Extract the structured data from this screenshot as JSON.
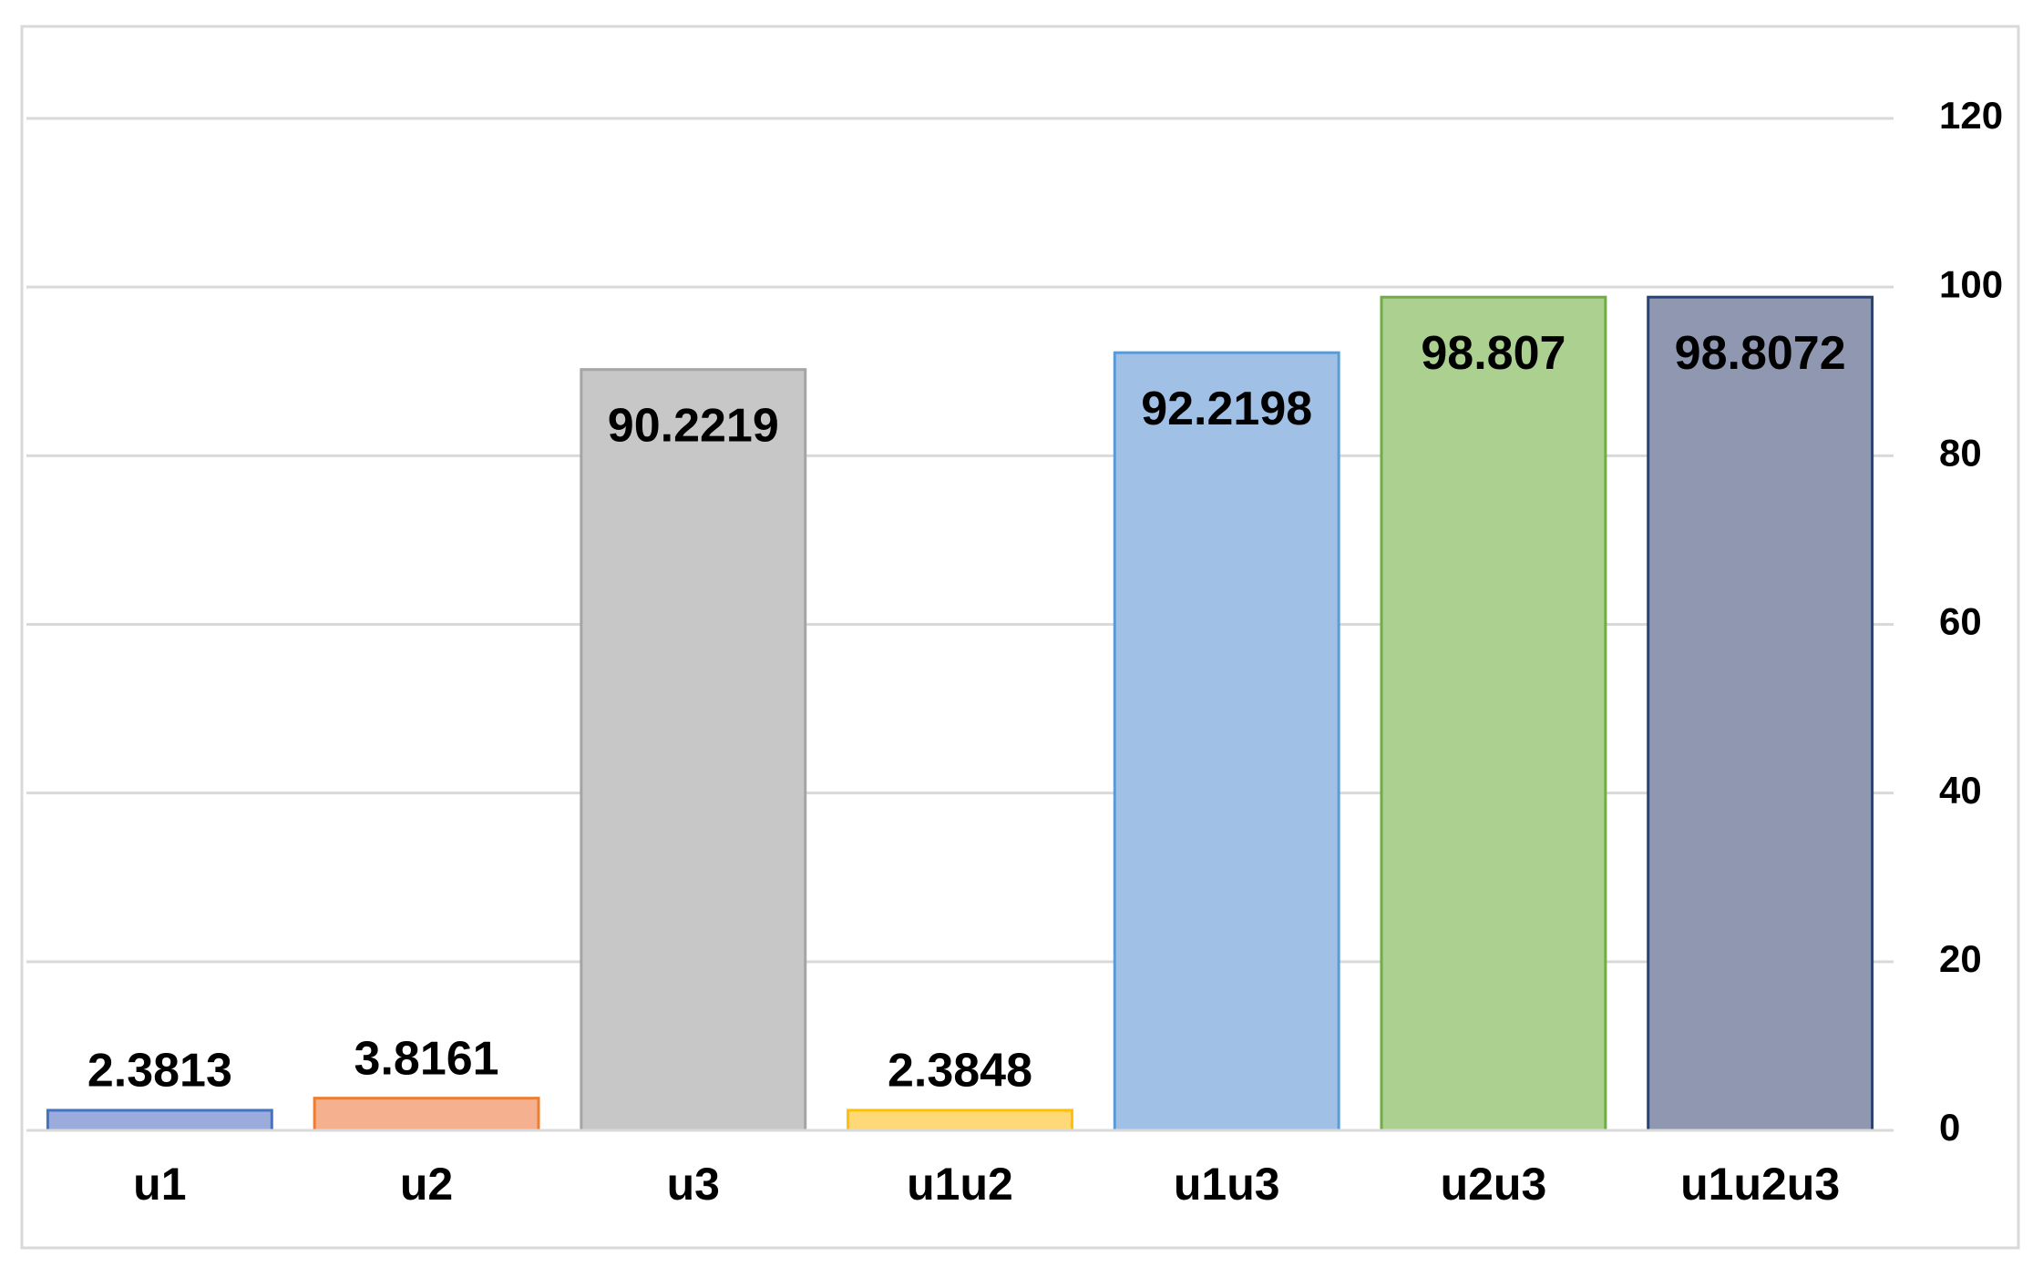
{
  "chart_data": {
    "type": "bar",
    "categories": [
      "u1",
      "u2",
      "u3",
      "u1u2",
      "u1u3",
      "u2u3",
      "u1u2u3"
    ],
    "values": [
      2.3813,
      3.8161,
      90.2219,
      2.3848,
      92.2198,
      98.807,
      98.8072
    ],
    "colors": [
      "#9aabdc",
      "#f5b090",
      "#c7c7c7",
      "#ffd877",
      "#a1c0e6",
      "#acd090",
      "#9097b0"
    ],
    "edge_colors": [
      "#4472c4",
      "#ed7d31",
      "#a5a5a5",
      "#ffc000",
      "#5b9bd5",
      "#70ad47",
      "#264478"
    ],
    "ylim": [
      0,
      120
    ],
    "yticks": [
      0,
      20,
      40,
      60,
      80,
      100,
      120
    ],
    "grid": true,
    "y_axis_side": "right"
  }
}
